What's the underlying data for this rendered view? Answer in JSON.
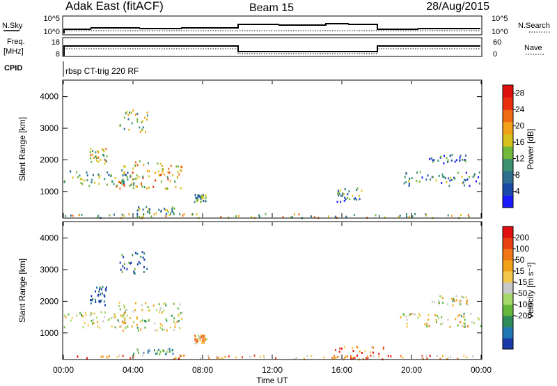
{
  "header": {
    "station": "Adak East (fitACF)",
    "beam": "Beam 15",
    "date": "28/Aug/2015"
  },
  "param_panel": {
    "nsky_label": "N.Sky",
    "nsearch_label": "N.Search",
    "noise_ticks_left": [
      "10^5",
      "10^0"
    ],
    "noise_ticks_right": [
      "10^5",
      "10^0"
    ],
    "freq_label": "Freq.",
    "freq_unit": "[MHz]",
    "freq_ticks": [
      "18",
      "8"
    ],
    "nave_label": "Nave",
    "nave_ticks": [
      "60",
      "0"
    ],
    "cpid_label": "CPID",
    "cpid_name": "rbsp CT-trig 220 RF"
  },
  "chart_data": [
    {
      "type": "heatmap",
      "panel": "power",
      "ylabel": "Slant Range [km]",
      "xlabel": "",
      "x_range_hours": [
        0,
        24
      ],
      "ylim": [
        180,
        4500
      ],
      "yticks": [
        "1000",
        "2000",
        "3000",
        "4000"
      ],
      "colorbar": {
        "label": "Power [dB]",
        "ticks": [
          "4",
          "8",
          "12",
          "16",
          "20",
          "24",
          "28"
        ],
        "range": [
          0,
          30
        ],
        "colors": [
          "#1a1aff",
          "#1c4aa8",
          "#2e6e8e",
          "#3a9070",
          "#72b83a",
          "#d6c21a",
          "#f2a21a",
          "#f06a14",
          "#e83010",
          "#e01010"
        ]
      },
      "regions": [
        {
          "t": [
            0.0,
            4.2
          ],
          "r": [
            1200,
            1700
          ],
          "level": 0.35
        },
        {
          "t": [
            3.0,
            6.8
          ],
          "r": [
            1100,
            2000
          ],
          "level": 0.6
        },
        {
          "t": [
            1.5,
            2.5
          ],
          "r": [
            1900,
            2400
          ],
          "level": 0.55
        },
        {
          "t": [
            3.2,
            4.8
          ],
          "r": [
            2900,
            3600
          ],
          "level": 0.45
        },
        {
          "t": [
            4.0,
            6.5
          ],
          "r": [
            300,
            550
          ],
          "level": 0.3
        },
        {
          "t": [
            7.5,
            8.2
          ],
          "r": [
            700,
            950
          ],
          "level": 0.4
        },
        {
          "t": [
            15.7,
            17.2
          ],
          "r": [
            700,
            1150
          ],
          "level": 0.3
        },
        {
          "t": [
            19.3,
            24.0
          ],
          "r": [
            1200,
            1650
          ],
          "level": 0.3
        },
        {
          "t": [
            21.0,
            23.2
          ],
          "r": [
            1900,
            2200
          ],
          "level": 0.25
        },
        {
          "t": [
            0.0,
            24.0
          ],
          "r": [
            190,
            320
          ],
          "level": 0.5
        }
      ]
    },
    {
      "type": "heatmap",
      "panel": "velocity",
      "ylabel": "Slant Range [km]",
      "xlabel": "Time UT",
      "x_range_hours": [
        0,
        24
      ],
      "ylim": [
        180,
        4500
      ],
      "yticks": [
        "1000",
        "2000",
        "3000",
        "4000"
      ],
      "xticks": [
        "00:00",
        "04:00",
        "08:00",
        "12:00",
        "16:00",
        "20:00",
        "00:00"
      ],
      "colorbar": {
        "label": "Velocity [m s⁻¹]",
        "ticks": [
          "200",
          "100",
          "50",
          "15",
          "-15",
          "-50",
          "-100",
          "-200"
        ],
        "colors": [
          "#1a3aa8",
          "#1f78b4",
          "#2e8c5a",
          "#63b83a",
          "#a6d86a",
          "#c8c8c8",
          "#f2c84a",
          "#f2a21a",
          "#f07818",
          "#e84010",
          "#e01010"
        ]
      },
      "regions": [
        {
          "t": [
            0.0,
            4.2
          ],
          "r": [
            1200,
            1700
          ],
          "level": 0.5
        },
        {
          "t": [
            3.0,
            6.8
          ],
          "r": [
            1100,
            2000
          ],
          "level": 0.5
        },
        {
          "t": [
            1.5,
            2.5
          ],
          "r": [
            1900,
            2500
          ],
          "level": 0.05
        },
        {
          "t": [
            3.2,
            4.8
          ],
          "r": [
            2900,
            3600
          ],
          "level": 0.1
        },
        {
          "t": [
            4.0,
            6.5
          ],
          "r": [
            350,
            550
          ],
          "level": 0.3
        },
        {
          "t": [
            7.5,
            8.2
          ],
          "r": [
            700,
            950
          ],
          "level": 0.65
        },
        {
          "t": [
            15.5,
            18.5
          ],
          "r": [
            190,
            600
          ],
          "level": 0.75
        },
        {
          "t": [
            19.3,
            24.0
          ],
          "r": [
            1200,
            1650
          ],
          "level": 0.5
        },
        {
          "t": [
            21.0,
            23.2
          ],
          "r": [
            1900,
            2200
          ],
          "level": 0.5
        },
        {
          "t": [
            0.0,
            24.0
          ],
          "r": [
            190,
            320
          ],
          "level": 0.7
        }
      ]
    }
  ]
}
